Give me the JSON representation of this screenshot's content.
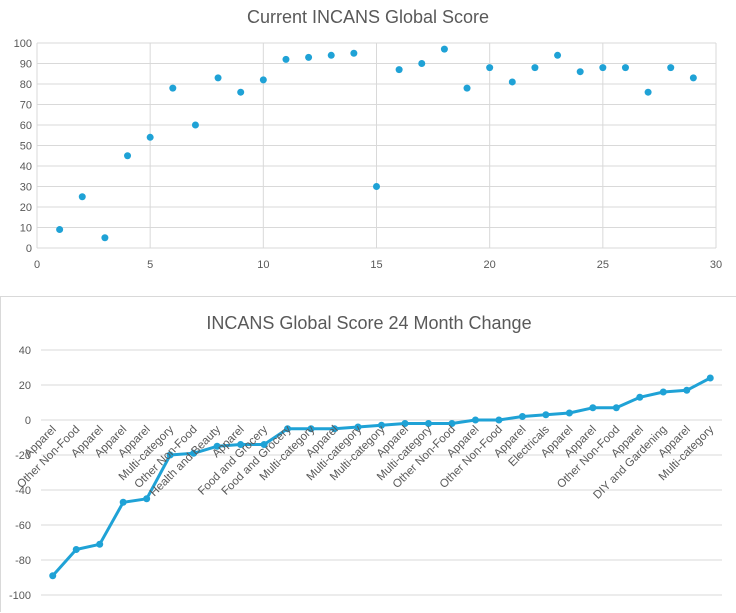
{
  "chart_data": [
    {
      "type": "scatter",
      "title": "Current INCANS Global Score",
      "xlabel": "",
      "ylabel": "",
      "xlim": [
        0,
        30
      ],
      "ylim": [
        0,
        100
      ],
      "xticks": [
        0,
        5,
        10,
        15,
        20,
        25,
        30
      ],
      "yticks": [
        0,
        10,
        20,
        30,
        40,
        50,
        60,
        70,
        80,
        90,
        100
      ],
      "grid": true,
      "color": "#1fa2d6",
      "x": [
        1,
        2,
        3,
        4,
        5,
        6,
        7,
        8,
        9,
        10,
        11,
        12,
        13,
        14,
        15,
        16,
        17,
        18,
        19,
        20,
        21,
        22,
        23,
        24,
        25,
        26,
        27,
        28,
        29
      ],
      "y": [
        9,
        25,
        5,
        45,
        54,
        78,
        60,
        83,
        76,
        82,
        92,
        93,
        94,
        95,
        30,
        87,
        90,
        97,
        78,
        88,
        81,
        88,
        94,
        86,
        88,
        88,
        76,
        88,
        83
      ]
    },
    {
      "type": "line",
      "title": "INCANS Global Score 24 Month Change",
      "xlabel": "",
      "ylabel": "",
      "ylim": [
        -100,
        40
      ],
      "yticks": [
        -100,
        -80,
        -60,
        -40,
        -20,
        0,
        20,
        40
      ],
      "grid": true,
      "color": "#1fa2d6",
      "categories": [
        "Apparel",
        "Other Non-Food",
        "Apparel",
        "Apparel",
        "Apparel",
        "Multi-category",
        "Other Non-Food",
        "Health and Beauty",
        "Apparel",
        "Food and Grocery",
        "Food and Grocery",
        "Multi-category",
        "Apparel",
        "Multi-category",
        "Multi-category",
        "Apparel",
        "Multi-category",
        "Other Non-Food",
        "Apparel",
        "Other Non-Food",
        "Apparel",
        "Electricals",
        "Apparel",
        "Apparel",
        "Other Non-Food",
        "Apparel",
        "DIY and Gardening",
        "Apparel",
        "Multi-category"
      ],
      "values": [
        -89,
        -74,
        -71,
        -47,
        -45,
        -20,
        -19,
        -15,
        -14,
        -14,
        -5,
        -5,
        -5,
        -4,
        -3,
        -2,
        -2,
        -2,
        0,
        0,
        2,
        3,
        4,
        7,
        7,
        13,
        16,
        17,
        24
      ]
    }
  ]
}
